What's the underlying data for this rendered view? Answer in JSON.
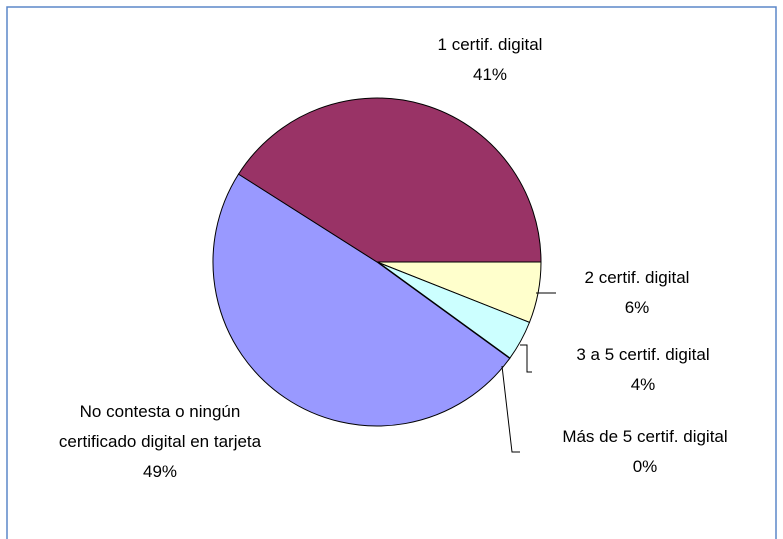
{
  "chart_data": {
    "type": "pie",
    "categories": [
      "2 certif. digital",
      "3 a 5 certif. digital",
      "Más de 5 certif. digital",
      "No contesta o ningún certificado digital en tarjeta",
      "1 certif. digital"
    ],
    "values": [
      6,
      4,
      0,
      49,
      41
    ],
    "value_labels": [
      "6%",
      "4%",
      "0%",
      "49%",
      "41%"
    ],
    "colors": [
      "#FFFFCC",
      "#CCFFFF",
      "#660066",
      "#9999FF",
      "#993366"
    ]
  }
}
